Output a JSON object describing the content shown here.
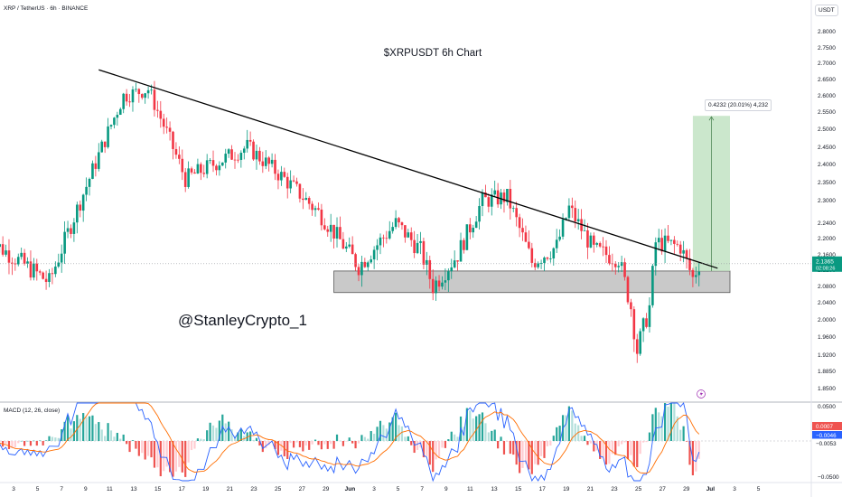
{
  "header": {
    "symbol_line": "XRP / TetherUS · 6h · BINANCE",
    "currency": "USDT"
  },
  "annotations": {
    "title": "$XRPUSDT 6h Chart",
    "watermark": "@StanleyCrypto_1",
    "measure_label": "0.4232 (20.01%) 4,232",
    "price_tag": "2.1365",
    "price_timer": "02:08:26"
  },
  "macd": {
    "label": "MACD (12, 26, close)",
    "axis_ticks": [
      "0.0500",
      "0.0000",
      "−0.0500"
    ],
    "tags": [
      "0.0007",
      "−0.0046",
      "−0.0053"
    ],
    "tag_values": [
      0.0007,
      -0.0046,
      -0.0053
    ]
  },
  "colors": {
    "up": "#26a69a",
    "down": "#ef5350",
    "up_candle": "#089981",
    "down_candle": "#f23645",
    "trendline": "#000000",
    "support_zone": "#c0c0c0",
    "target_zone": "#c8e6c9",
    "macd_line": "#2962ff",
    "signal_line": "#ff6d00",
    "text": "#131722",
    "axis_text": "#131722"
  },
  "chart_data": {
    "type": "candlestick",
    "title": "$XRPUSDT 6h Chart",
    "symbol": "XRP / TetherUS",
    "timeframe": "6h",
    "exchange": "BINANCE",
    "y_axis_ticks": [
      "2.8000",
      "2.7500",
      "2.7000",
      "2.6500",
      "2.6000",
      "2.5500",
      "2.5000",
      "2.4500",
      "2.4000",
      "2.3500",
      "2.3000",
      "2.2400",
      "2.2000",
      "2.1600",
      "2.1200",
      "2.0800",
      "2.0400",
      "2.0000",
      "1.9600",
      "1.9200",
      "1.8850",
      "1.8500"
    ],
    "x_axis_ticks": [
      "3",
      "5",
      "7",
      "9",
      "11",
      "13",
      "15",
      "17",
      "19",
      "21",
      "23",
      "25",
      "27",
      "29",
      "Jun",
      "3",
      "5",
      "7",
      "9",
      "11",
      "13",
      "15",
      "17",
      "19",
      "21",
      "23",
      "25",
      "27",
      "29",
      "Jul",
      "3",
      "5"
    ],
    "current_price": 2.1365,
    "trendline": {
      "from": [
        "May 10",
        2.68
      ],
      "to": [
        "Jun 29",
        2.125
      ]
    },
    "support_zone": {
      "low": 2.065,
      "high": 2.118,
      "from": "May 29",
      "to": "Jun 30"
    },
    "target_zone": {
      "low": 2.118,
      "high": 2.54,
      "from": "Jun 27",
      "to": "Jun 30",
      "change": 0.4232,
      "change_pct": "20.01%",
      "ticks": "4,232"
    },
    "key_points": [
      {
        "date": "May 1",
        "price": 2.2
      },
      {
        "date": "May 6",
        "price": 2.09
      },
      {
        "date": "May 9",
        "price": 2.34
      },
      {
        "date": "May 12",
        "price": 2.6
      },
      {
        "date": "May 14",
        "price": 2.62
      },
      {
        "date": "May 17",
        "price": 2.36
      },
      {
        "date": "May 22",
        "price": 2.45
      },
      {
        "date": "May 25",
        "price": 2.36
      },
      {
        "date": "May 28",
        "price": 2.26
      },
      {
        "date": "May 31",
        "price": 2.13
      },
      {
        "date": "Jun 3",
        "price": 2.24
      },
      {
        "date": "Jun 5",
        "price": 2.17
      },
      {
        "date": "Jun 6",
        "price": 2.08
      },
      {
        "date": "Jun 8",
        "price": 2.16
      },
      {
        "date": "Jun 10",
        "price": 2.3
      },
      {
        "date": "Jun 12",
        "price": 2.31
      },
      {
        "date": "Jun 14",
        "price": 2.14
      },
      {
        "date": "Jun 16",
        "price": 2.18
      },
      {
        "date": "Jun 17",
        "price": 2.28
      },
      {
        "date": "Jun 19",
        "price": 2.17
      },
      {
        "date": "Jun 21",
        "price": 2.15
      },
      {
        "date": "Jun 22",
        "price": 2.03
      },
      {
        "date": "Jun 22.5",
        "price": 1.93
      },
      {
        "date": "Jun 23.5",
        "price": 2.03
      },
      {
        "date": "Jun 24",
        "price": 2.19
      },
      {
        "date": "Jun 26",
        "price": 2.18
      },
      {
        "date": "Jun 27",
        "price": 2.1
      },
      {
        "date": "Jun 27.5",
        "price": 2.1365
      }
    ]
  }
}
